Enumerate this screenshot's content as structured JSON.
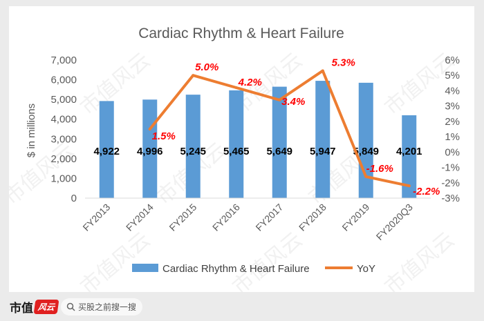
{
  "chart_data": {
    "type": "bar",
    "title": "Cardiac Rhythm & Heart Failure",
    "categories": [
      "FY2013",
      "FY2014",
      "FY2015",
      "FY2016",
      "FY2017",
      "FY2018",
      "FY2019",
      "FY2020Q3"
    ],
    "series": [
      {
        "name": "Cardiac Rhythm & Heart Failure",
        "type": "bar",
        "axis": "left",
        "color": "#5b9bd5",
        "values": [
          4922,
          4996,
          5245,
          5465,
          5649,
          5947,
          5849,
          4201
        ],
        "labels": [
          "4,922",
          "4,996",
          "5,245",
          "5,465",
          "5,649",
          "5,947",
          "5,849",
          "4,201"
        ]
      },
      {
        "name": "YoY",
        "type": "line",
        "axis": "right",
        "color": "#ed7d31",
        "values": [
          null,
          1.5,
          5.0,
          4.2,
          3.4,
          5.3,
          -1.6,
          -2.2
        ],
        "labels": [
          null,
          "1.5%",
          "5.0%",
          "4.2%",
          "3.4%",
          "5.3%",
          "-1.6%",
          "-2.2%"
        ],
        "label_color": "#ff0000"
      }
    ],
    "ylabel": "$ in millions",
    "ylim": [
      0,
      7000
    ],
    "yticks": [
      "0",
      "1,000",
      "2,000",
      "3,000",
      "4,000",
      "5,000",
      "6,000",
      "7,000"
    ],
    "y2lim": [
      -3,
      6
    ],
    "y2ticks": [
      "-3%",
      "-2%",
      "-1%",
      "0%",
      "1%",
      "2%",
      "3%",
      "4%",
      "5%",
      "6%"
    ],
    "grid": false,
    "legend_position": "bottom"
  },
  "watermark": "市值风云",
  "footer": {
    "brand": "市值",
    "brand_badge": "风云",
    "search_placeholder": "买股之前搜一搜"
  },
  "colors": {
    "bar": "#5b9bd5",
    "line": "#ed7d31",
    "yoy_label": "#ff0000",
    "background": "#ebebeb"
  }
}
